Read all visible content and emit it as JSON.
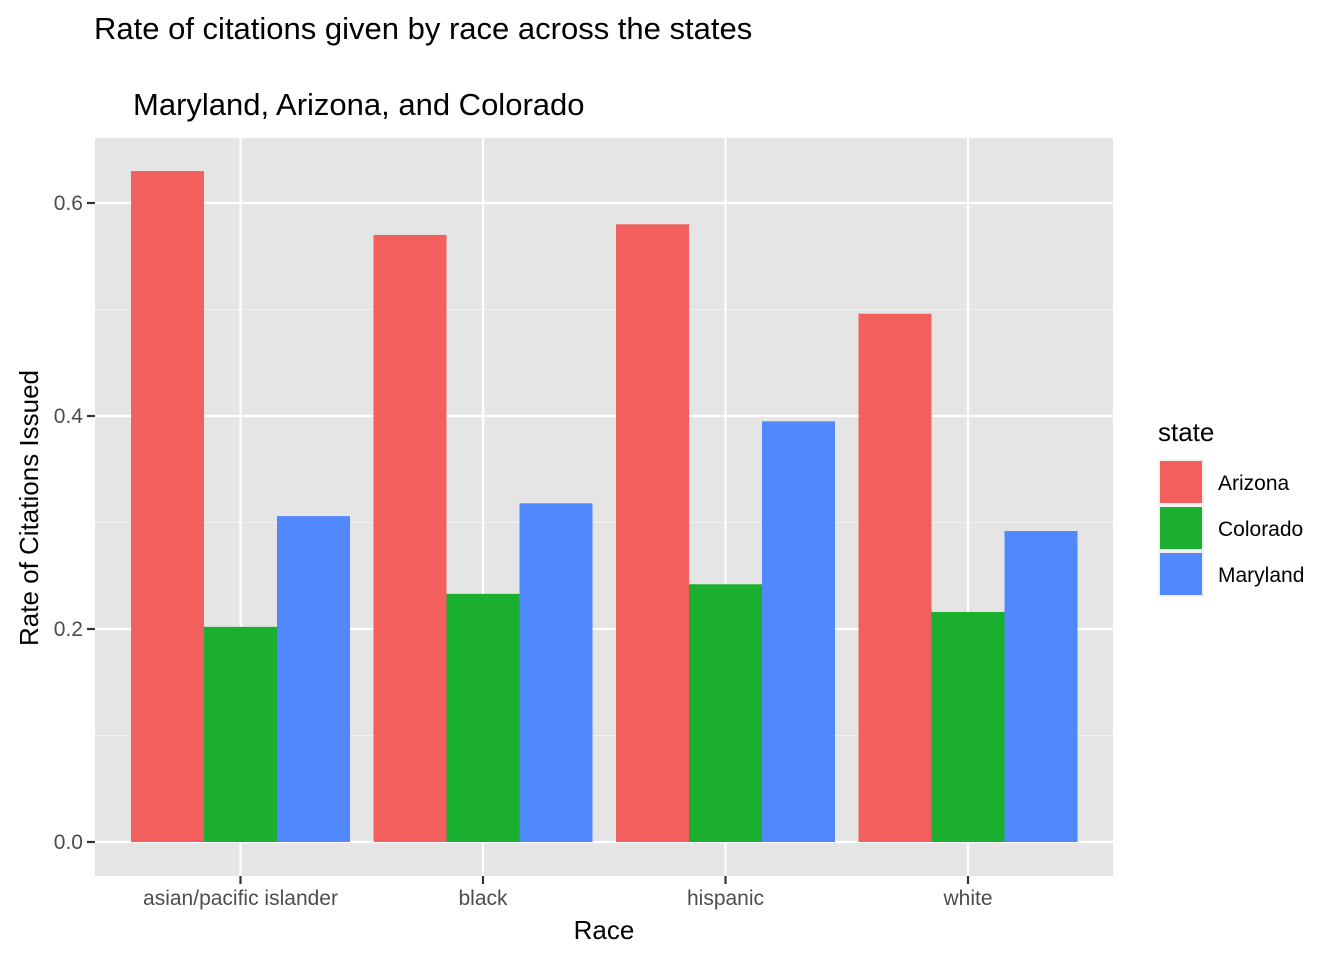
{
  "chart_data": {
    "type": "bar",
    "title": "Rate of citations given by race across the states",
    "subtitle": "Maryland, Arizona, and Colorado",
    "xlabel": "Race",
    "ylabel": "Rate of Citations Issued",
    "categories": [
      "asian/pacific islander",
      "black",
      "hispanic",
      "white"
    ],
    "series": [
      {
        "name": "Arizona",
        "color": "#F25F5C",
        "values": [
          0.63,
          0.57,
          0.58,
          0.496
        ]
      },
      {
        "name": "Colorado",
        "color": "#1AAF2E",
        "values": [
          0.202,
          0.233,
          0.242,
          0.216
        ]
      },
      {
        "name": "Maryland",
        "color": "#5187FF",
        "values": [
          0.306,
          0.318,
          0.395,
          0.292
        ]
      }
    ],
    "ylim": [
      0,
      0.6
    ],
    "yticks": [
      "0.0",
      "0.2",
      "0.4",
      "0.6"
    ],
    "grid": true,
    "panel_background": "#E5E5E5",
    "legend": {
      "title": "state",
      "placement": "right"
    }
  }
}
